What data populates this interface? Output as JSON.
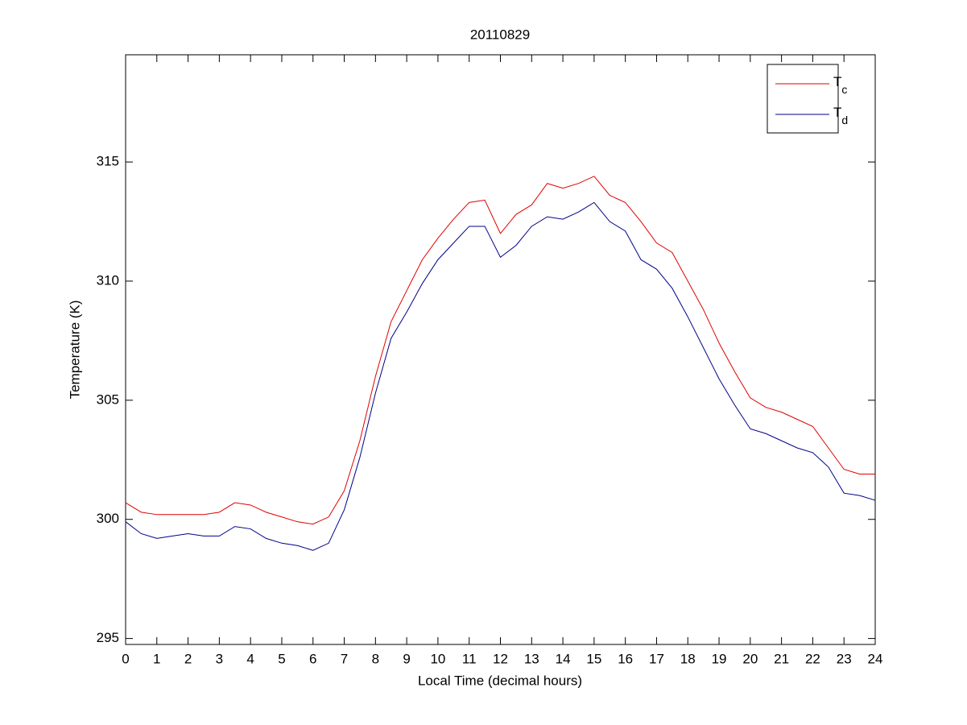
{
  "chart_data": {
    "type": "line",
    "title": "20110829",
    "x_label": "Local Time (decimal hours)",
    "y_label": "Temperature (K)",
    "x": [
      0,
      0.5,
      1,
      1.5,
      2,
      2.5,
      3,
      3.5,
      4,
      4.5,
      5,
      5.5,
      6,
      6.5,
      7,
      7.5,
      8,
      8.5,
      9,
      9.5,
      10,
      10.5,
      11,
      11.5,
      12,
      12.5,
      13,
      13.5,
      14,
      14.5,
      15,
      15.5,
      16,
      16.5,
      17,
      17.5,
      18,
      18.5,
      19,
      19.5,
      20,
      20.5,
      21,
      21.5,
      22,
      22.5,
      23,
      23.5,
      24
    ],
    "series": [
      {
        "name": "Tc",
        "color": "#e00000",
        "values": [
          300.7,
          300.3,
          300.2,
          300.2,
          300.2,
          300.2,
          300.3,
          300.7,
          300.6,
          300.3,
          300.1,
          299.9,
          299.8,
          300.1,
          301.2,
          303.3,
          306.0,
          308.3,
          309.6,
          310.9,
          311.8,
          312.6,
          313.3,
          313.4,
          312.0,
          312.8,
          313.2,
          314.1,
          313.9,
          314.1,
          314.4,
          313.6,
          313.3,
          312.5,
          311.6,
          311.2,
          310.0,
          308.8,
          307.4,
          306.2,
          305.1,
          304.7,
          304.5,
          304.2,
          303.9,
          303.0,
          302.1,
          301.9,
          301.9
        ]
      },
      {
        "name": "Td",
        "color": "#00008b",
        "values": [
          299.9,
          299.4,
          299.2,
          299.3,
          299.4,
          299.3,
          299.3,
          299.7,
          299.6,
          299.2,
          299.0,
          298.9,
          298.7,
          299.0,
          300.4,
          302.6,
          305.3,
          307.6,
          308.7,
          309.9,
          310.9,
          311.6,
          312.3,
          312.3,
          311.0,
          311.5,
          312.3,
          312.7,
          312.6,
          312.9,
          313.3,
          312.5,
          312.1,
          310.9,
          310.5,
          309.7,
          308.5,
          307.2,
          305.9,
          304.8,
          303.8,
          303.6,
          303.3,
          303.0,
          302.8,
          302.2,
          301.1,
          301.0,
          300.8
        ]
      }
    ],
    "xlim": [
      0,
      24
    ],
    "xticks": [
      0,
      1,
      2,
      3,
      4,
      5,
      6,
      7,
      8,
      9,
      10,
      11,
      12,
      13,
      14,
      15,
      16,
      17,
      18,
      19,
      20,
      21,
      22,
      23,
      24
    ],
    "ylim": [
      294.75,
      319.5
    ],
    "yticks": [
      295,
      300,
      305,
      310,
      315
    ],
    "grid": false,
    "legend": "upper right"
  }
}
